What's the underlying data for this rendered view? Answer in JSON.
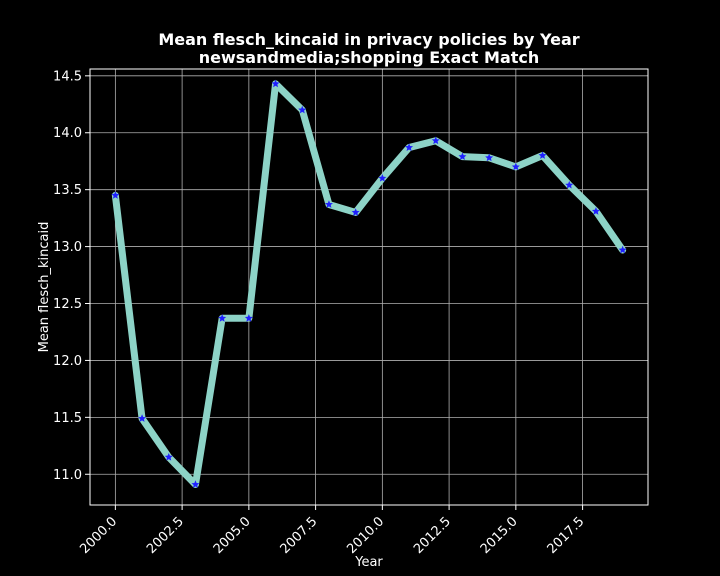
{
  "chart_data": {
    "type": "line",
    "title_line1": "Mean flesch_kincaid in privacy policies by Year",
    "title_line2": "newsandmedia;shopping Exact Match",
    "xlabel": "Year",
    "ylabel": "Mean flesch_kincaid",
    "xlim": [
      1999.05,
      2019.95
    ],
    "ylim": [
      10.73,
      14.56
    ],
    "grid": true,
    "x_ticks": [
      2000.0,
      2002.5,
      2005.0,
      2007.5,
      2010.0,
      2012.5,
      2015.0,
      2017.5
    ],
    "x_tick_labels": [
      "2000.0",
      "2002.5",
      "2005.0",
      "2007.5",
      "2010.0",
      "2012.5",
      "2015.0",
      "2017.5"
    ],
    "y_ticks": [
      11.0,
      11.5,
      12.0,
      12.5,
      13.0,
      13.5,
      14.0,
      14.5
    ],
    "y_tick_labels": [
      "11.0",
      "11.5",
      "12.0",
      "12.5",
      "13.0",
      "13.5",
      "14.0",
      "14.5"
    ],
    "line_color": "#8dd3c7",
    "marker_color": "#1f1fff",
    "background": "#000000",
    "x": [
      2000,
      2001,
      2002,
      2003,
      2004,
      2005,
      2006,
      2007,
      2008,
      2009,
      2010,
      2011,
      2012,
      2013,
      2014,
      2015,
      2016,
      2017,
      2018,
      2019
    ],
    "y": [
      13.45,
      11.49,
      11.15,
      10.91,
      12.37,
      12.37,
      14.43,
      14.2,
      13.37,
      13.3,
      13.6,
      13.87,
      13.93,
      13.79,
      13.78,
      13.7,
      13.8,
      13.54,
      13.31,
      12.97
    ]
  }
}
